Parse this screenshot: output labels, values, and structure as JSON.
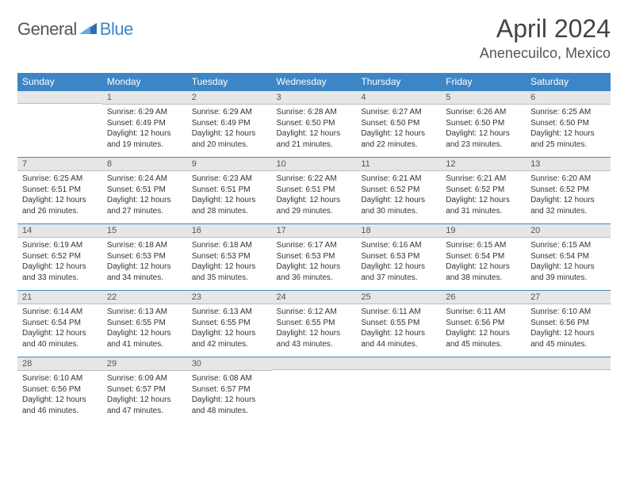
{
  "logo": {
    "text1": "General",
    "text2": "Blue"
  },
  "title": "April 2024",
  "location": "Anenecuilco, Mexico",
  "day_headers": [
    "Sunday",
    "Monday",
    "Tuesday",
    "Wednesday",
    "Thursday",
    "Friday",
    "Saturday"
  ],
  "colors": {
    "header_bg": "#3d86c6",
    "daynum_bg": "#e6e6e6",
    "border": "#3d86c6"
  },
  "font": {
    "cell_size": 10,
    "header_size": 12,
    "title_size": 32,
    "location_size": 18
  },
  "weeks": [
    [
      {
        "num": "",
        "sunrise": "",
        "sunset": "",
        "daylight_l1": "",
        "daylight_l2": ""
      },
      {
        "num": "1",
        "sunrise": "Sunrise: 6:29 AM",
        "sunset": "Sunset: 6:49 PM",
        "daylight_l1": "Daylight: 12 hours",
        "daylight_l2": "and 19 minutes."
      },
      {
        "num": "2",
        "sunrise": "Sunrise: 6:29 AM",
        "sunset": "Sunset: 6:49 PM",
        "daylight_l1": "Daylight: 12 hours",
        "daylight_l2": "and 20 minutes."
      },
      {
        "num": "3",
        "sunrise": "Sunrise: 6:28 AM",
        "sunset": "Sunset: 6:50 PM",
        "daylight_l1": "Daylight: 12 hours",
        "daylight_l2": "and 21 minutes."
      },
      {
        "num": "4",
        "sunrise": "Sunrise: 6:27 AM",
        "sunset": "Sunset: 6:50 PM",
        "daylight_l1": "Daylight: 12 hours",
        "daylight_l2": "and 22 minutes."
      },
      {
        "num": "5",
        "sunrise": "Sunrise: 6:26 AM",
        "sunset": "Sunset: 6:50 PM",
        "daylight_l1": "Daylight: 12 hours",
        "daylight_l2": "and 23 minutes."
      },
      {
        "num": "6",
        "sunrise": "Sunrise: 6:25 AM",
        "sunset": "Sunset: 6:50 PM",
        "daylight_l1": "Daylight: 12 hours",
        "daylight_l2": "and 25 minutes."
      }
    ],
    [
      {
        "num": "7",
        "sunrise": "Sunrise: 6:25 AM",
        "sunset": "Sunset: 6:51 PM",
        "daylight_l1": "Daylight: 12 hours",
        "daylight_l2": "and 26 minutes."
      },
      {
        "num": "8",
        "sunrise": "Sunrise: 6:24 AM",
        "sunset": "Sunset: 6:51 PM",
        "daylight_l1": "Daylight: 12 hours",
        "daylight_l2": "and 27 minutes."
      },
      {
        "num": "9",
        "sunrise": "Sunrise: 6:23 AM",
        "sunset": "Sunset: 6:51 PM",
        "daylight_l1": "Daylight: 12 hours",
        "daylight_l2": "and 28 minutes."
      },
      {
        "num": "10",
        "sunrise": "Sunrise: 6:22 AM",
        "sunset": "Sunset: 6:51 PM",
        "daylight_l1": "Daylight: 12 hours",
        "daylight_l2": "and 29 minutes."
      },
      {
        "num": "11",
        "sunrise": "Sunrise: 6:21 AM",
        "sunset": "Sunset: 6:52 PM",
        "daylight_l1": "Daylight: 12 hours",
        "daylight_l2": "and 30 minutes."
      },
      {
        "num": "12",
        "sunrise": "Sunrise: 6:21 AM",
        "sunset": "Sunset: 6:52 PM",
        "daylight_l1": "Daylight: 12 hours",
        "daylight_l2": "and 31 minutes."
      },
      {
        "num": "13",
        "sunrise": "Sunrise: 6:20 AM",
        "sunset": "Sunset: 6:52 PM",
        "daylight_l1": "Daylight: 12 hours",
        "daylight_l2": "and 32 minutes."
      }
    ],
    [
      {
        "num": "14",
        "sunrise": "Sunrise: 6:19 AM",
        "sunset": "Sunset: 6:52 PM",
        "daylight_l1": "Daylight: 12 hours",
        "daylight_l2": "and 33 minutes."
      },
      {
        "num": "15",
        "sunrise": "Sunrise: 6:18 AM",
        "sunset": "Sunset: 6:53 PM",
        "daylight_l1": "Daylight: 12 hours",
        "daylight_l2": "and 34 minutes."
      },
      {
        "num": "16",
        "sunrise": "Sunrise: 6:18 AM",
        "sunset": "Sunset: 6:53 PM",
        "daylight_l1": "Daylight: 12 hours",
        "daylight_l2": "and 35 minutes."
      },
      {
        "num": "17",
        "sunrise": "Sunrise: 6:17 AM",
        "sunset": "Sunset: 6:53 PM",
        "daylight_l1": "Daylight: 12 hours",
        "daylight_l2": "and 36 minutes."
      },
      {
        "num": "18",
        "sunrise": "Sunrise: 6:16 AM",
        "sunset": "Sunset: 6:53 PM",
        "daylight_l1": "Daylight: 12 hours",
        "daylight_l2": "and 37 minutes."
      },
      {
        "num": "19",
        "sunrise": "Sunrise: 6:15 AM",
        "sunset": "Sunset: 6:54 PM",
        "daylight_l1": "Daylight: 12 hours",
        "daylight_l2": "and 38 minutes."
      },
      {
        "num": "20",
        "sunrise": "Sunrise: 6:15 AM",
        "sunset": "Sunset: 6:54 PM",
        "daylight_l1": "Daylight: 12 hours",
        "daylight_l2": "and 39 minutes."
      }
    ],
    [
      {
        "num": "21",
        "sunrise": "Sunrise: 6:14 AM",
        "sunset": "Sunset: 6:54 PM",
        "daylight_l1": "Daylight: 12 hours",
        "daylight_l2": "and 40 minutes."
      },
      {
        "num": "22",
        "sunrise": "Sunrise: 6:13 AM",
        "sunset": "Sunset: 6:55 PM",
        "daylight_l1": "Daylight: 12 hours",
        "daylight_l2": "and 41 minutes."
      },
      {
        "num": "23",
        "sunrise": "Sunrise: 6:13 AM",
        "sunset": "Sunset: 6:55 PM",
        "daylight_l1": "Daylight: 12 hours",
        "daylight_l2": "and 42 minutes."
      },
      {
        "num": "24",
        "sunrise": "Sunrise: 6:12 AM",
        "sunset": "Sunset: 6:55 PM",
        "daylight_l1": "Daylight: 12 hours",
        "daylight_l2": "and 43 minutes."
      },
      {
        "num": "25",
        "sunrise": "Sunrise: 6:11 AM",
        "sunset": "Sunset: 6:55 PM",
        "daylight_l1": "Daylight: 12 hours",
        "daylight_l2": "and 44 minutes."
      },
      {
        "num": "26",
        "sunrise": "Sunrise: 6:11 AM",
        "sunset": "Sunset: 6:56 PM",
        "daylight_l1": "Daylight: 12 hours",
        "daylight_l2": "and 45 minutes."
      },
      {
        "num": "27",
        "sunrise": "Sunrise: 6:10 AM",
        "sunset": "Sunset: 6:56 PM",
        "daylight_l1": "Daylight: 12 hours",
        "daylight_l2": "and 45 minutes."
      }
    ],
    [
      {
        "num": "28",
        "sunrise": "Sunrise: 6:10 AM",
        "sunset": "Sunset: 6:56 PM",
        "daylight_l1": "Daylight: 12 hours",
        "daylight_l2": "and 46 minutes."
      },
      {
        "num": "29",
        "sunrise": "Sunrise: 6:09 AM",
        "sunset": "Sunset: 6:57 PM",
        "daylight_l1": "Daylight: 12 hours",
        "daylight_l2": "and 47 minutes."
      },
      {
        "num": "30",
        "sunrise": "Sunrise: 6:08 AM",
        "sunset": "Sunset: 6:57 PM",
        "daylight_l1": "Daylight: 12 hours",
        "daylight_l2": "and 48 minutes."
      },
      {
        "num": "",
        "sunrise": "",
        "sunset": "",
        "daylight_l1": "",
        "daylight_l2": ""
      },
      {
        "num": "",
        "sunrise": "",
        "sunset": "",
        "daylight_l1": "",
        "daylight_l2": ""
      },
      {
        "num": "",
        "sunrise": "",
        "sunset": "",
        "daylight_l1": "",
        "daylight_l2": ""
      },
      {
        "num": "",
        "sunrise": "",
        "sunset": "",
        "daylight_l1": "",
        "daylight_l2": ""
      }
    ]
  ]
}
